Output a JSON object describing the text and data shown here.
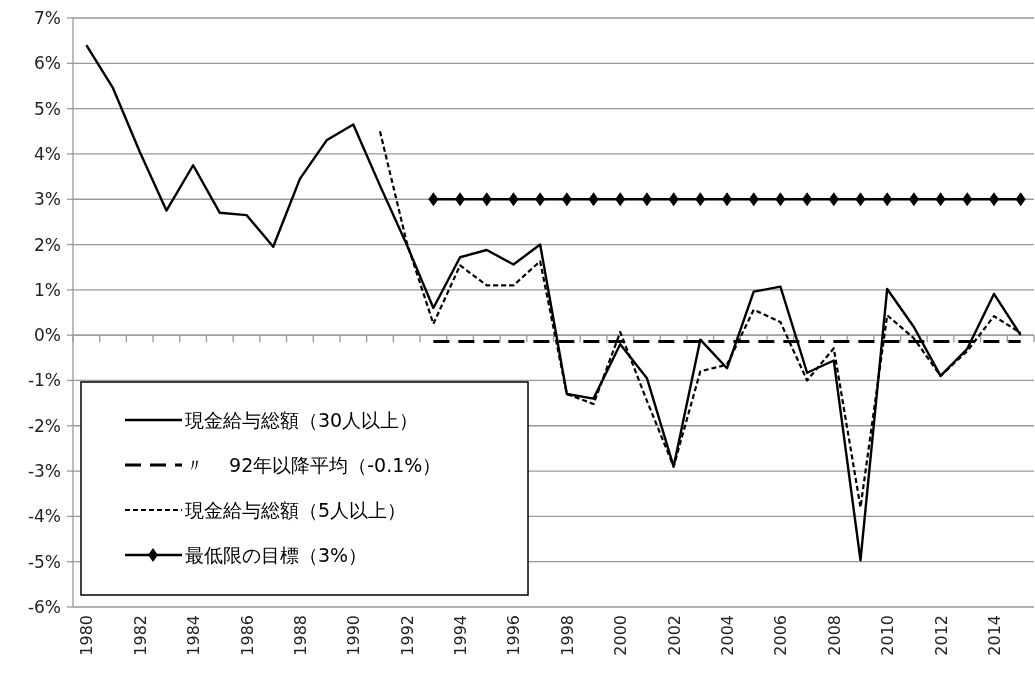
{
  "chart_data": {
    "type": "line",
    "categories": [
      "1980",
      null,
      "1982",
      null,
      "1984",
      null,
      "1986",
      null,
      "1988",
      null,
      "1990",
      null,
      "1992",
      null,
      "1994",
      null,
      "1996",
      null,
      "1998",
      null,
      "2000",
      null,
      "2002",
      null,
      "2004",
      null,
      "2006",
      null,
      "2008",
      null,
      "2010",
      null,
      "2012",
      null,
      "2014",
      null
    ],
    "series": [
      {
        "name": "現金給与総額（30人以上）",
        "color": "#000000",
        "line_style": "solid",
        "values": [
          6.4,
          5.45,
          4.05,
          2.75,
          3.75,
          2.7,
          2.65,
          1.95,
          3.45,
          4.3,
          4.65,
          3.3,
          2.0,
          0.6,
          1.72,
          1.88,
          1.56,
          2.0,
          -1.3,
          -1.4,
          -0.2,
          -0.95,
          -2.9,
          -0.1,
          -0.73,
          0.96,
          1.07,
          -0.83,
          -0.56,
          -4.97,
          1.02,
          0.18,
          -0.9,
          -0.3,
          0.91,
          0.0
        ]
      },
      {
        "name": "〃　 92年以降平均（-0.1%）",
        "color": "#000000",
        "line_style": "dashed",
        "values": [
          null,
          null,
          null,
          null,
          null,
          null,
          null,
          null,
          null,
          null,
          null,
          null,
          null,
          -0.14,
          -0.14,
          -0.14,
          -0.14,
          -0.14,
          -0.14,
          -0.14,
          -0.14,
          -0.14,
          -0.14,
          -0.14,
          -0.14,
          -0.14,
          -0.14,
          -0.14,
          -0.14,
          -0.14,
          -0.14,
          -0.14,
          -0.14,
          -0.14,
          -0.14,
          -0.14
        ]
      },
      {
        "name": "現金給与総額（5人以上）",
        "color": "#000000",
        "line_style": "dotted",
        "values": [
          null,
          null,
          null,
          null,
          null,
          null,
          null,
          null,
          null,
          null,
          null,
          4.5,
          2.05,
          0.25,
          1.54,
          1.1,
          1.1,
          1.63,
          -1.3,
          -1.52,
          0.07,
          -1.45,
          -2.9,
          -0.8,
          -0.65,
          0.56,
          0.29,
          -1.0,
          -0.29,
          -3.8,
          0.44,
          -0.07,
          -0.9,
          -0.35,
          0.42,
          0.05
        ]
      },
      {
        "name": "最低限の目標（3%）",
        "color": "#000000",
        "line_style": "solid",
        "marker": "diamond",
        "values": [
          null,
          null,
          null,
          null,
          null,
          null,
          null,
          null,
          null,
          null,
          null,
          null,
          null,
          3,
          3,
          3,
          3,
          3,
          3,
          3,
          3,
          3,
          3,
          3,
          3,
          3,
          3,
          3,
          3,
          3,
          3,
          3,
          3,
          3,
          3,
          3
        ]
      }
    ],
    "ylim": [
      -6,
      7
    ],
    "yticks": [
      {
        "value": -6,
        "label": "-6%"
      },
      {
        "value": -5,
        "label": "-5%"
      },
      {
        "value": -4,
        "label": "-4%"
      },
      {
        "value": -3,
        "label": "-3%"
      },
      {
        "value": -2,
        "label": "-2%"
      },
      {
        "value": -1,
        "label": "-1%"
      },
      {
        "value": 0,
        "label": "0%"
      },
      {
        "value": 1,
        "label": "1%"
      },
      {
        "value": 2,
        "label": "2%"
      },
      {
        "value": 3,
        "label": "3%"
      },
      {
        "value": 4,
        "label": "4%"
      },
      {
        "value": 5,
        "label": "5%"
      },
      {
        "value": 6,
        "label": "6%"
      },
      {
        "value": 7,
        "label": "7%"
      }
    ],
    "grid": "y",
    "legend": "bottom left"
  }
}
